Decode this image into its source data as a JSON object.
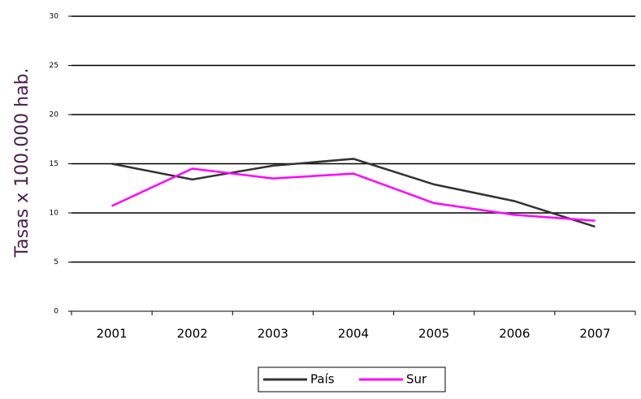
{
  "chart_data": {
    "type": "line",
    "y_label": "Tasas x 100.000 hab.",
    "categories": [
      "2001",
      "2002",
      "2003",
      "2004",
      "2005",
      "2006",
      "2007"
    ],
    "series": [
      {
        "name": "País",
        "color": "#333333",
        "values": [
          15,
          13.4,
          14.8,
          15.5,
          12.9,
          11.2,
          8.6
        ]
      },
      {
        "name": "Sur",
        "color": "#ff00ff",
        "values": [
          10.7,
          14.5,
          13.5,
          14.0,
          11.0,
          9.8,
          9.2
        ]
      }
    ],
    "ylim": [
      0,
      30
    ],
    "yticks": [
      0,
      5,
      10,
      15,
      20,
      25,
      30
    ],
    "grid": true,
    "legend": "bottom"
  }
}
